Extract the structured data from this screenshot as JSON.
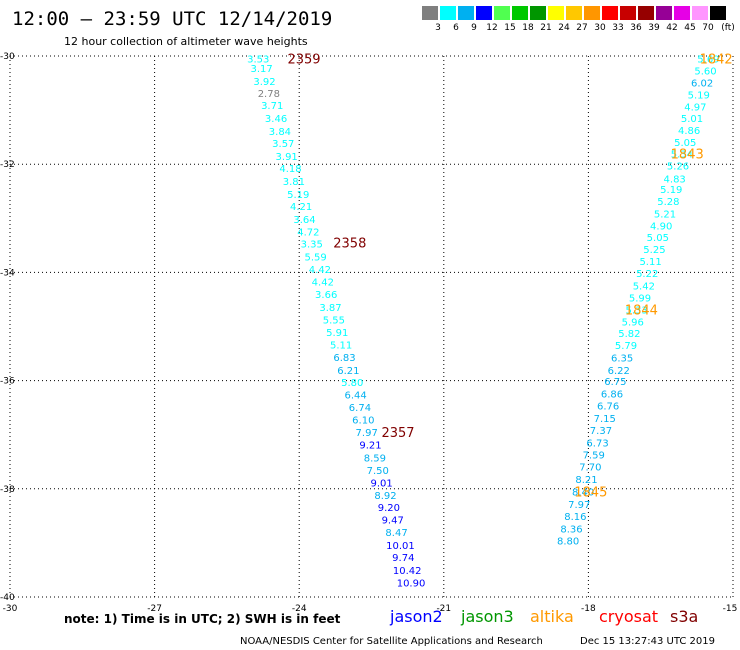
{
  "header": {
    "title": "12:00 — 23:59 UTC 12/14/2019",
    "subtitle": "12 hour collection of altimeter wave heights"
  },
  "colorbar": {
    "unit_label": "(ft)",
    "bins": [
      {
        "label": "3",
        "color": "#7f7f7f"
      },
      {
        "label": "6",
        "color": "#00ffff"
      },
      {
        "label": "9",
        "color": "#00b0f0"
      },
      {
        "label": "12",
        "color": "#0000ff"
      },
      {
        "label": "15",
        "color": "#50ff50"
      },
      {
        "label": "18",
        "color": "#00c800"
      },
      {
        "label": "21",
        "color": "#009600"
      },
      {
        "label": "24",
        "color": "#ffff00"
      },
      {
        "label": "27",
        "color": "#ffc800"
      },
      {
        "label": "30",
        "color": "#ff9600"
      },
      {
        "label": "33",
        "color": "#ff0000"
      },
      {
        "label": "36",
        "color": "#c80000"
      },
      {
        "label": "39",
        "color": "#960000"
      },
      {
        "label": "42",
        "color": "#960096"
      },
      {
        "label": "45",
        "color": "#e600e6"
      },
      {
        "label": "70",
        "color": "#ff96ff"
      },
      {
        "label": "",
        "color": "#000000"
      }
    ]
  },
  "chart_data": {
    "type": "scatter",
    "xlim": [
      -30,
      -15
    ],
    "ylim": [
      -40,
      -30
    ],
    "x_ticks": [
      -30,
      -27,
      -24,
      -21,
      -18,
      -15
    ],
    "y_ticks": [
      -30,
      -32,
      -34,
      -36,
      -38,
      -40
    ],
    "grid": true,
    "series": [
      {
        "name": "jason2",
        "points": [
          {
            "x": -24.85,
            "y": -30.05,
            "v": "3.53"
          },
          {
            "x": -24.78,
            "y": -30.22,
            "v": "3.17"
          },
          {
            "x": -24.72,
            "y": -30.46,
            "v": "3.92"
          },
          {
            "x": -24.63,
            "y": -30.68,
            "v": "2.78"
          },
          {
            "x": -24.56,
            "y": -30.91,
            "v": "3.71"
          },
          {
            "x": -24.48,
            "y": -31.15,
            "v": "3.46"
          },
          {
            "x": -24.4,
            "y": -31.39,
            "v": "3.84"
          },
          {
            "x": -24.33,
            "y": -31.61,
            "v": "3.57"
          },
          {
            "x": -24.26,
            "y": -31.85,
            "v": "3.91"
          },
          {
            "x": -24.18,
            "y": -32.07,
            "v": "4.18"
          },
          {
            "x": -24.11,
            "y": -32.31,
            "v": "3.81"
          },
          {
            "x": -24.02,
            "y": -32.55,
            "v": "5.19"
          },
          {
            "x": -23.96,
            "y": -32.77,
            "v": "4.21"
          },
          {
            "x": -23.89,
            "y": -33.01,
            "v": "3.64"
          },
          {
            "x": -23.81,
            "y": -33.24,
            "v": "4.72"
          },
          {
            "x": -23.74,
            "y": -33.47,
            "v": "3.35"
          },
          {
            "x": -23.66,
            "y": -33.71,
            "v": "5.59"
          },
          {
            "x": -23.57,
            "y": -33.94,
            "v": "4.42"
          },
          {
            "x": -23.51,
            "y": -34.17,
            "v": "4.42"
          },
          {
            "x": -23.44,
            "y": -34.4,
            "v": "3.66"
          },
          {
            "x": -23.35,
            "y": -34.64,
            "v": "3.87"
          },
          {
            "x": -23.28,
            "y": -34.87,
            "v": "5.55"
          },
          {
            "x": -23.21,
            "y": -35.1,
            "v": "5.91"
          },
          {
            "x": -23.13,
            "y": -35.33,
            "v": "5.11"
          },
          {
            "x": -23.06,
            "y": -35.56,
            "v": "6.83"
          },
          {
            "x": -22.98,
            "y": -35.8,
            "v": "6.21"
          },
          {
            "x": -22.9,
            "y": -36.03,
            "v": "5.80"
          },
          {
            "x": -22.83,
            "y": -36.26,
            "v": "6.44"
          },
          {
            "x": -22.74,
            "y": -36.49,
            "v": "6.74"
          },
          {
            "x": -22.67,
            "y": -36.72,
            "v": "6.10"
          },
          {
            "x": -22.6,
            "y": -36.95,
            "v": "7.97"
          },
          {
            "x": -22.52,
            "y": -37.18,
            "v": "9.21"
          },
          {
            "x": -22.43,
            "y": -37.42,
            "v": "8.59"
          },
          {
            "x": -22.37,
            "y": -37.65,
            "v": "7.50"
          },
          {
            "x": -22.29,
            "y": -37.88,
            "v": "9.01"
          },
          {
            "x": -22.21,
            "y": -38.11,
            "v": "8.92"
          },
          {
            "x": -22.14,
            "y": -38.34,
            "v": "9.20"
          },
          {
            "x": -22.06,
            "y": -38.57,
            "v": "9.47"
          },
          {
            "x": -21.98,
            "y": -38.8,
            "v": "8.47"
          },
          {
            "x": -21.9,
            "y": -39.04,
            "v": "10.01"
          },
          {
            "x": -21.84,
            "y": -39.26,
            "v": "9.74"
          },
          {
            "x": -21.76,
            "y": -39.5,
            "v": "10.42"
          },
          {
            "x": -21.68,
            "y": -39.73,
            "v": "10.90"
          }
        ]
      },
      {
        "name": "altika",
        "points": [
          {
            "x": -15.51,
            "y": -30.05,
            "v": "5.69"
          },
          {
            "x": -15.57,
            "y": -30.27,
            "v": "5.60"
          },
          {
            "x": -15.64,
            "y": -30.49,
            "v": "6.02"
          },
          {
            "x": -15.71,
            "y": -30.71,
            "v": "5.19"
          },
          {
            "x": -15.78,
            "y": -30.93,
            "v": "4.97"
          },
          {
            "x": -15.85,
            "y": -31.15,
            "v": "5.01"
          },
          {
            "x": -15.91,
            "y": -31.37,
            "v": "4.86"
          },
          {
            "x": -15.99,
            "y": -31.59,
            "v": "5.05"
          },
          {
            "x": -16.06,
            "y": -31.8,
            "v": "5.34"
          },
          {
            "x": -16.14,
            "y": -32.02,
            "v": "5.26"
          },
          {
            "x": -16.21,
            "y": -32.26,
            "v": "4.83"
          },
          {
            "x": -16.28,
            "y": -32.46,
            "v": "5.19"
          },
          {
            "x": -16.34,
            "y": -32.68,
            "v": "5.28"
          },
          {
            "x": -16.41,
            "y": -32.91,
            "v": "5.21"
          },
          {
            "x": -16.49,
            "y": -33.13,
            "v": "4.90"
          },
          {
            "x": -16.56,
            "y": -33.35,
            "v": "5.05"
          },
          {
            "x": -16.63,
            "y": -33.57,
            "v": "5.25"
          },
          {
            "x": -16.71,
            "y": -33.79,
            "v": "5.11"
          },
          {
            "x": -16.78,
            "y": -34.01,
            "v": "5.22"
          },
          {
            "x": -16.85,
            "y": -34.24,
            "v": "5.42"
          },
          {
            "x": -16.93,
            "y": -34.46,
            "v": "5.99"
          },
          {
            "x": -17.0,
            "y": -34.69,
            "v": "5.33"
          },
          {
            "x": -17.08,
            "y": -34.91,
            "v": "5.96"
          },
          {
            "x": -17.15,
            "y": -35.12,
            "v": "5.82"
          },
          {
            "x": -17.22,
            "y": -35.34,
            "v": "5.79"
          },
          {
            "x": -17.3,
            "y": -35.57,
            "v": "6.35"
          },
          {
            "x": -17.37,
            "y": -35.8,
            "v": "6.22"
          },
          {
            "x": -17.44,
            "y": -36.01,
            "v": "6.75"
          },
          {
            "x": -17.51,
            "y": -36.24,
            "v": "6.86"
          },
          {
            "x": -17.59,
            "y": -36.46,
            "v": "6.76"
          },
          {
            "x": -17.66,
            "y": -36.69,
            "v": "7.15"
          },
          {
            "x": -17.74,
            "y": -36.91,
            "v": "7.37"
          },
          {
            "x": -17.81,
            "y": -37.14,
            "v": "6.73"
          },
          {
            "x": -17.89,
            "y": -37.37,
            "v": "7.59"
          },
          {
            "x": -17.96,
            "y": -37.59,
            "v": "7.70"
          },
          {
            "x": -18.04,
            "y": -37.82,
            "v": "8.21"
          },
          {
            "x": -18.11,
            "y": -38.05,
            "v": "8.40"
          },
          {
            "x": -18.19,
            "y": -38.28,
            "v": "7.97"
          },
          {
            "x": -18.27,
            "y": -38.5,
            "v": "8.16"
          },
          {
            "x": -18.35,
            "y": -38.73,
            "v": "8.36"
          },
          {
            "x": -18.42,
            "y": -38.96,
            "v": "8.80"
          }
        ]
      }
    ],
    "time_labels": [
      {
        "text": "2359",
        "x": -23.9,
        "y": -30.05,
        "color": "#800000"
      },
      {
        "text": "2358",
        "x": -22.95,
        "y": -33.45,
        "color": "#800000"
      },
      {
        "text": "2357",
        "x": -21.95,
        "y": -36.95,
        "color": "#800000"
      },
      {
        "text": "1842",
        "x": -15.35,
        "y": -30.05,
        "color": "#ff9900"
      },
      {
        "text": "1843",
        "x": -15.95,
        "y": -31.8,
        "color": "#ff9900"
      },
      {
        "text": "1844",
        "x": -16.9,
        "y": -34.69,
        "color": "#ff9900"
      },
      {
        "text": "1845",
        "x": -17.95,
        "y": -38.05,
        "color": "#ff9900"
      }
    ]
  },
  "footer": {
    "note": "note:  1) Time is in UTC;  2) SWH is in feet",
    "satellites": [
      {
        "name": "jason2",
        "color": "#0000ff"
      },
      {
        "name": "jason3",
        "color": "#009600"
      },
      {
        "name": "altika",
        "color": "#ff9900"
      },
      {
        "name": "cryosat",
        "color": "#ff0000"
      },
      {
        "name": "s3a",
        "color": "#800000"
      }
    ],
    "credit": "NOAA/NESDIS Center for Satellite Applications and Research",
    "timestamp": "Dec 15 13:27:43 UTC 2019"
  }
}
